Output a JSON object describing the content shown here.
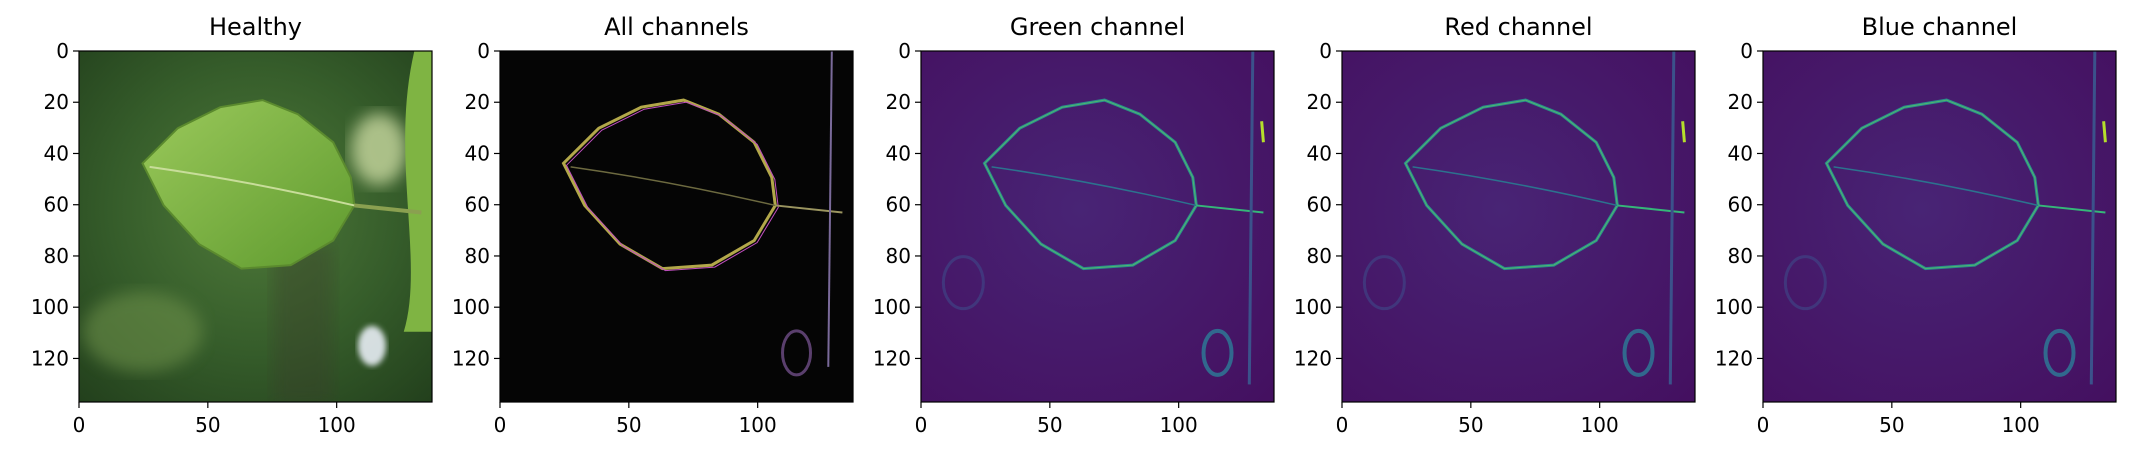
{
  "figure": {
    "panels": [
      {
        "title": "Healthy",
        "kind": "rgb-photo"
      },
      {
        "title": "All channels",
        "kind": "edge-rgb"
      },
      {
        "title": "Green channel",
        "kind": "edge-viridis"
      },
      {
        "title": "Red channel",
        "kind": "edge-viridis"
      },
      {
        "title": "Blue channel",
        "kind": "edge-viridis"
      }
    ]
  },
  "chart_data": [
    {
      "type": "heatmap",
      "title": "Healthy",
      "xlabel": "",
      "ylabel": "",
      "xlim": [
        0,
        137
      ],
      "ylim": [
        137,
        0
      ],
      "xticks": [
        0,
        50,
        100
      ],
      "yticks": [
        0,
        20,
        40,
        60,
        80,
        100,
        120
      ],
      "image": "RGB photograph of a green potato leaf on blurred green background"
    },
    {
      "type": "heatmap",
      "title": "All channels",
      "xlabel": "",
      "ylabel": "",
      "xlim": [
        0,
        137
      ],
      "ylim": [
        137,
        0
      ],
      "xticks": [
        0,
        50,
        100
      ],
      "yticks": [
        0,
        20,
        40,
        60,
        80,
        100,
        120
      ],
      "image": "Edge-detection output of all RGB channels on black background"
    },
    {
      "type": "heatmap",
      "title": "Green channel",
      "xlabel": "",
      "ylabel": "",
      "xlim": [
        0,
        137
      ],
      "ylim": [
        137,
        0
      ],
      "xticks": [
        0,
        50,
        100
      ],
      "yticks": [
        0,
        20,
        40,
        60,
        80,
        100,
        120
      ],
      "colormap": "viridis"
    },
    {
      "type": "heatmap",
      "title": "Red channel",
      "xlabel": "",
      "ylabel": "",
      "xlim": [
        0,
        137
      ],
      "ylim": [
        137,
        0
      ],
      "xticks": [
        0,
        50,
        100
      ],
      "yticks": [
        0,
        20,
        40,
        60,
        80,
        100,
        120
      ],
      "colormap": "viridis"
    },
    {
      "type": "heatmap",
      "title": "Blue channel",
      "xlabel": "",
      "ylabel": "",
      "xlim": [
        0,
        137
      ],
      "ylim": [
        137,
        0
      ],
      "xticks": [
        0,
        50,
        100
      ],
      "yticks": [
        0,
        20,
        40,
        60,
        80,
        100,
        120
      ],
      "colormap": "viridis"
    }
  ]
}
